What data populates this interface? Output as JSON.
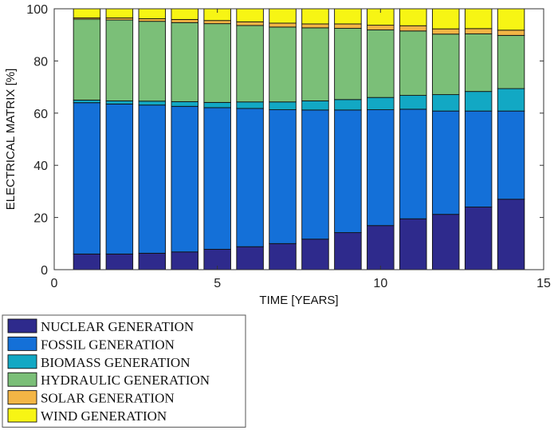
{
  "chart_data": {
    "type": "bar",
    "stacked": true,
    "x": [
      1,
      2,
      3,
      4,
      5,
      6,
      7,
      8,
      9,
      10,
      11,
      12,
      13,
      14
    ],
    "xlabel": "TIME [YEARS]",
    "ylabel": "ELECTRICAL MATRIX [%]",
    "xlim": [
      0,
      15
    ],
    "ylim": [
      0,
      100
    ],
    "xticks": [
      0,
      5,
      10,
      15
    ],
    "yticks": [
      0,
      20,
      40,
      60,
      80,
      100
    ],
    "grid": false,
    "legend_position": "bottom-left",
    "series": [
      {
        "name": "NUCLEAR GENERATION",
        "color": "#2e2a8c",
        "values": [
          6,
          6,
          6.3,
          6.8,
          7.8,
          8.8,
          10,
          11.7,
          14.2,
          16.9,
          19.5,
          21.2,
          24,
          27
        ]
      },
      {
        "name": "FOSSIL GENERATION",
        "color": "#1470d8",
        "values": [
          58,
          57.5,
          56.8,
          55.8,
          54.3,
          53,
          51.3,
          49.5,
          47,
          44.4,
          42,
          39.6,
          36.8,
          33.8
        ]
      },
      {
        "name": "BIOMASS GENERATION",
        "color": "#12a8c4",
        "values": [
          1,
          1.2,
          1.5,
          1.8,
          2,
          2.5,
          3,
          3.5,
          4,
          4.7,
          5.3,
          6.3,
          7.5,
          8.6
        ]
      },
      {
        "name": "HYDRAULIC GENERATION",
        "color": "#7bbf78",
        "values": [
          31,
          31,
          30.6,
          30.3,
          30.2,
          29.3,
          28.7,
          28,
          27.3,
          25.9,
          24.7,
          23.2,
          22.1,
          20.4
        ]
      },
      {
        "name": "SOLAR GENERATION",
        "color": "#f3b545",
        "values": [
          0.5,
          0.8,
          1,
          1.2,
          1.2,
          1.4,
          1.5,
          1.5,
          1.7,
          1.8,
          2,
          2,
          2,
          2
        ]
      },
      {
        "name": "WIND GENERATION",
        "color": "#f7f514",
        "values": [
          3.5,
          3.5,
          3.8,
          4.1,
          4.5,
          5,
          5.5,
          5.8,
          5.8,
          6.3,
          6.5,
          7.7,
          7.6,
          8.2
        ]
      }
    ]
  }
}
